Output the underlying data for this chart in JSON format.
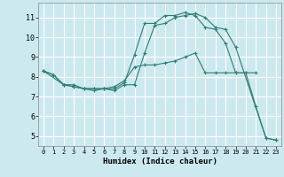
{
  "xlabel": "Humidex (Indice chaleur)",
  "bg_color": "#cce9f0",
  "grid_color": "#ffffff",
  "line_color": "#2e7d72",
  "xlim": [
    -0.5,
    23.5
  ],
  "ylim": [
    4.5,
    11.75
  ],
  "xticks": [
    0,
    1,
    2,
    3,
    4,
    5,
    6,
    7,
    8,
    9,
    10,
    11,
    12,
    13,
    14,
    15,
    16,
    17,
    18,
    19,
    20,
    21,
    22,
    23
  ],
  "yticks": [
    5,
    6,
    7,
    8,
    9,
    10,
    11
  ],
  "series": [
    {
      "x": [
        0,
        1,
        2,
        3,
        4,
        5,
        6,
        7,
        8,
        9,
        10,
        11,
        12,
        13,
        14,
        15,
        16,
        17,
        18,
        19,
        20,
        21,
        22,
        23
      ],
      "y": [
        8.3,
        8.1,
        7.6,
        7.6,
        7.4,
        7.4,
        7.4,
        7.4,
        7.7,
        9.1,
        10.7,
        10.7,
        11.1,
        11.1,
        11.25,
        11.1,
        10.5,
        10.4,
        9.7,
        8.2,
        8.2,
        6.5,
        4.9,
        4.8
      ]
    },
    {
      "x": [
        0,
        1,
        2,
        3,
        4,
        5,
        6,
        7,
        8,
        9,
        10,
        11,
        12,
        13,
        14,
        15,
        16,
        17,
        18,
        19,
        20,
        21
      ],
      "y": [
        8.3,
        8.1,
        7.6,
        7.5,
        7.4,
        7.4,
        7.4,
        7.5,
        7.8,
        8.5,
        8.6,
        8.6,
        8.7,
        8.8,
        9.0,
        9.2,
        8.2,
        8.2,
        8.2,
        8.2,
        8.2,
        8.2
      ]
    },
    {
      "x": [
        0,
        2,
        3,
        4,
        5,
        6,
        7,
        8,
        9,
        10,
        11,
        12,
        13,
        14,
        15,
        16,
        17,
        18,
        19,
        22,
        23
      ],
      "y": [
        8.3,
        7.6,
        7.5,
        7.4,
        7.3,
        7.4,
        7.3,
        7.6,
        7.6,
        9.2,
        10.6,
        10.7,
        11.0,
        11.1,
        11.2,
        11.0,
        10.5,
        10.4,
        9.5,
        4.9,
        4.8
      ]
    }
  ]
}
